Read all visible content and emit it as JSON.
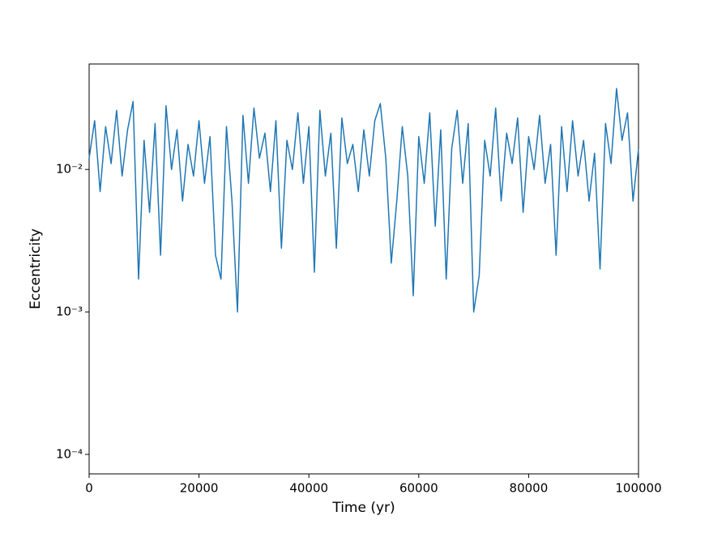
{
  "chart_data": {
    "type": "line",
    "x_label": "Time  (yr)",
    "y_label": "Eccentricity",
    "xlim": [
      0,
      100000
    ],
    "xticks": [
      0,
      20000,
      40000,
      60000,
      80000,
      100000
    ],
    "ylim": [
      7.3e-05,
      0.055
    ],
    "y_scale": "log",
    "yticks": [
      {
        "value": 0.0001,
        "label": "10⁻⁴"
      },
      {
        "value": 0.001,
        "label": "10⁻³"
      },
      {
        "value": 0.01,
        "label": "10⁻²"
      }
    ],
    "x": [
      0,
      1000,
      2000,
      3000,
      4000,
      5000,
      6000,
      7000,
      8000,
      9000,
      10000,
      11000,
      12000,
      13000,
      14000,
      15000,
      16000,
      17000,
      18000,
      19000,
      20000,
      21000,
      22000,
      23000,
      24000,
      25000,
      26000,
      27000,
      28000,
      29000,
      30000,
      31000,
      32000,
      33000,
      34000,
      35000,
      36000,
      37000,
      38000,
      39000,
      40000,
      41000,
      42000,
      43000,
      44000,
      45000,
      46000,
      47000,
      48000,
      49000,
      50000,
      51000,
      52000,
      53000,
      54000,
      55000,
      56000,
      57000,
      58000,
      59000,
      60000,
      61000,
      62000,
      63000,
      64000,
      65000,
      66000,
      67000,
      68000,
      69000,
      70000,
      71000,
      72000,
      73000,
      74000,
      75000,
      76000,
      77000,
      78000,
      79000,
      80000,
      81000,
      82000,
      83000,
      84000,
      85000,
      86000,
      87000,
      88000,
      89000,
      90000,
      91000,
      92000,
      93000,
      94000,
      95000,
      96000,
      97000,
      98000,
      99000,
      100000
    ],
    "series": [
      {
        "color": "#1f77b4",
        "values": [
          0.012,
          0.022,
          0.007,
          0.02,
          0.011,
          0.026,
          0.009,
          0.019,
          0.03,
          0.0017,
          0.016,
          0.005,
          0.021,
          0.0025,
          0.028,
          0.01,
          0.019,
          0.006,
          0.015,
          0.009,
          0.022,
          0.008,
          0.017,
          0.0025,
          0.0017,
          0.02,
          0.006,
          0.001,
          0.024,
          0.008,
          0.027,
          0.012,
          0.018,
          0.007,
          0.022,
          0.0028,
          0.016,
          0.01,
          0.025,
          0.008,
          0.02,
          0.0019,
          0.026,
          0.009,
          0.018,
          0.0028,
          0.023,
          0.011,
          0.015,
          0.007,
          0.019,
          0.009,
          0.022,
          0.029,
          0.012,
          0.0022,
          0.006,
          0.02,
          0.009,
          0.0013,
          0.017,
          0.008,
          0.025,
          0.004,
          0.019,
          0.0017,
          0.014,
          0.026,
          0.008,
          0.021,
          0.001,
          0.0018,
          0.016,
          0.009,
          0.027,
          0.006,
          0.018,
          0.011,
          0.023,
          0.005,
          0.017,
          0.01,
          0.024,
          0.008,
          0.015,
          0.0025,
          0.02,
          0.007,
          0.022,
          0.009,
          0.016,
          0.006,
          0.013,
          0.002,
          0.021,
          0.011,
          0.037,
          0.016,
          0.025,
          0.006,
          0.014
        ]
      }
    ]
  }
}
